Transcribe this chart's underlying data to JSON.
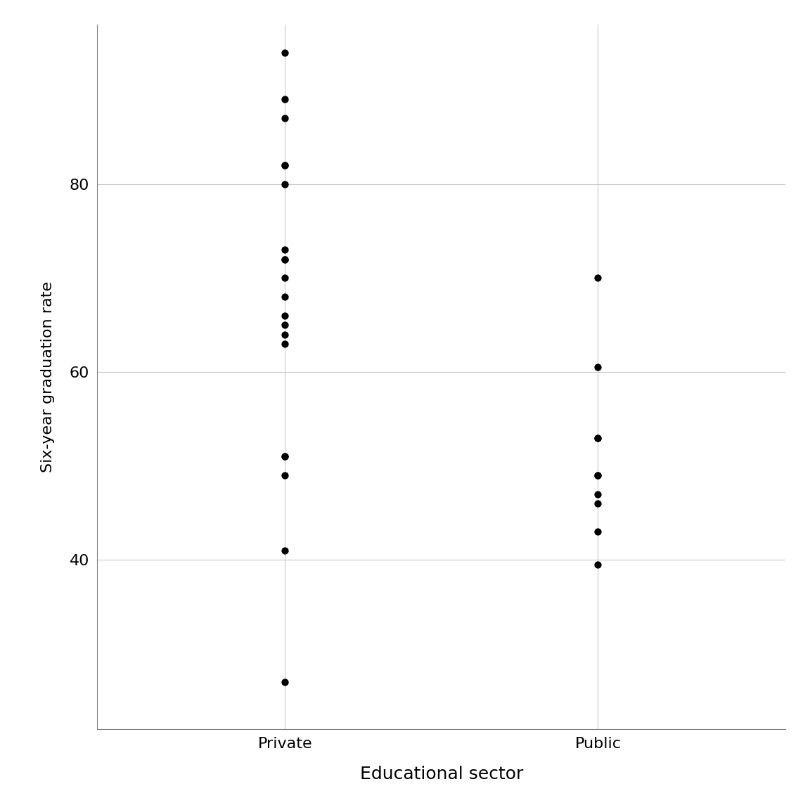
{
  "private_y": [
    94,
    89,
    87,
    82,
    82,
    80,
    73,
    72,
    72,
    70,
    68,
    66,
    65,
    64,
    63,
    51,
    51,
    49,
    41,
    27
  ],
  "public_y": [
    70,
    60.5,
    53,
    53,
    49,
    49,
    47,
    46,
    43,
    39.5
  ],
  "categories": [
    "Private",
    "Public"
  ],
  "xlabel": "Educational sector",
  "ylabel": "Six-year graduation rate",
  "xlim": [
    0.4,
    2.6
  ],
  "ylim": [
    22,
    97
  ],
  "yticks": [
    40,
    60,
    80
  ],
  "bg_color": "#ffffff",
  "panel_bg": "#ffffff",
  "grid_color": "#c8c8c8",
  "dot_color": "#000000",
  "dot_size": 55,
  "xlabel_fontsize": 18,
  "ylabel_fontsize": 16,
  "tick_fontsize": 16,
  "spine_color": "#808080"
}
